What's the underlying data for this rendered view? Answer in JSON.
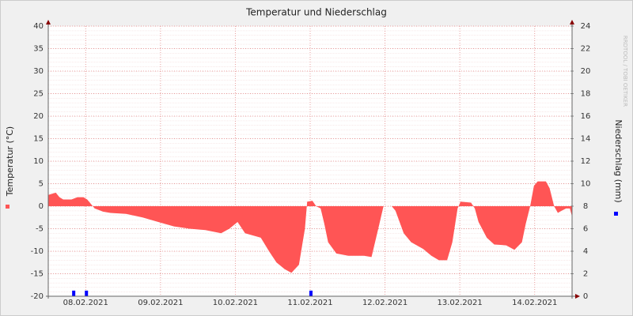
{
  "chart_data": {
    "type": "combo",
    "title": "Temperatur und Niederschlag",
    "y_label": "Temperatur (°C)",
    "y2_label": "Niederschlag (mm)",
    "watermark": "RRDTOOL / TOBI OETIKER",
    "xlim": [
      0,
      7
    ],
    "xticks": [
      {
        "value": 0.5,
        "label": "08.02.2021"
      },
      {
        "value": 1.5,
        "label": "09.02.2021"
      },
      {
        "value": 2.5,
        "label": "10.02.2021"
      },
      {
        "value": 3.5,
        "label": "11.02.2021"
      },
      {
        "value": 4.5,
        "label": "12.02.2021"
      },
      {
        "value": 5.5,
        "label": "13.02.2021"
      },
      {
        "value": 6.5,
        "label": "14.02.2021"
      }
    ],
    "ylim": [
      -20,
      40
    ],
    "yticks": [
      -20,
      -15,
      -10,
      -5,
      0,
      5,
      10,
      15,
      20,
      25,
      30,
      35,
      40
    ],
    "y2lim": [
      0,
      24
    ],
    "y2ticks": [
      0,
      2,
      4,
      6,
      8,
      10,
      12,
      14,
      16,
      18,
      20,
      22,
      24
    ],
    "grid": true,
    "series": [
      {
        "name": "Temperatur",
        "type": "area",
        "color": "#ff5555",
        "x": [
          0,
          0.1,
          0.15,
          0.2,
          0.31,
          0.39,
          0.47,
          0.52,
          0.57,
          0.62,
          0.73,
          0.83,
          1.04,
          1.26,
          1.47,
          1.68,
          1.89,
          2.1,
          2.31,
          2.42,
          2.53,
          2.63,
          2.84,
          2.95,
          3.05,
          3.16,
          3.25,
          3.35,
          3.43,
          3.46,
          3.53,
          3.58,
          3.64,
          3.69,
          3.74,
          3.85,
          4.01,
          4.22,
          4.32,
          4.41,
          4.48,
          4.59,
          4.64,
          4.75,
          4.85,
          5.01,
          5.12,
          5.22,
          5.33,
          5.4,
          5.47,
          5.51,
          5.65,
          5.7,
          5.75,
          5.86,
          5.96,
          6.12,
          6.23,
          6.33,
          6.38,
          6.44,
          6.49,
          6.54,
          6.65,
          6.7,
          6.76,
          6.81,
          6.86,
          6.92,
          6.97,
          7.0
        ],
        "values": [
          2.5,
          3,
          2,
          1.5,
          1.5,
          2,
          2,
          1.5,
          0.5,
          -0.5,
          -1.2,
          -1.5,
          -1.7,
          -2.5,
          -3.5,
          -4.5,
          -5,
          -5.3,
          -6,
          -5,
          -3.5,
          -6,
          -7,
          -10,
          -12.5,
          -14,
          -14.8,
          -13,
          -5,
          1,
          1.2,
          0,
          -0.5,
          -4,
          -8,
          -10.5,
          -11,
          -11,
          -11.3,
          -5,
          0,
          0,
          -1,
          -6,
          -8,
          -9.5,
          -11,
          -12,
          -12,
          -8,
          -0.5,
          1,
          0.8,
          -0.5,
          -3.5,
          -7,
          -8.5,
          -8.7,
          -9.7,
          -8,
          -4,
          0,
          4.5,
          5.5,
          5.5,
          4,
          0,
          -1.5,
          -1,
          -0.5,
          -0.5,
          -2.3
        ]
      },
      {
        "name": "Niederschlag",
        "type": "bar",
        "axis": "y2",
        "color": "#0000ff",
        "x": [
          0.34,
          0.51,
          3.51
        ],
        "values": [
          0.5,
          0.5,
          0.5
        ]
      }
    ]
  }
}
